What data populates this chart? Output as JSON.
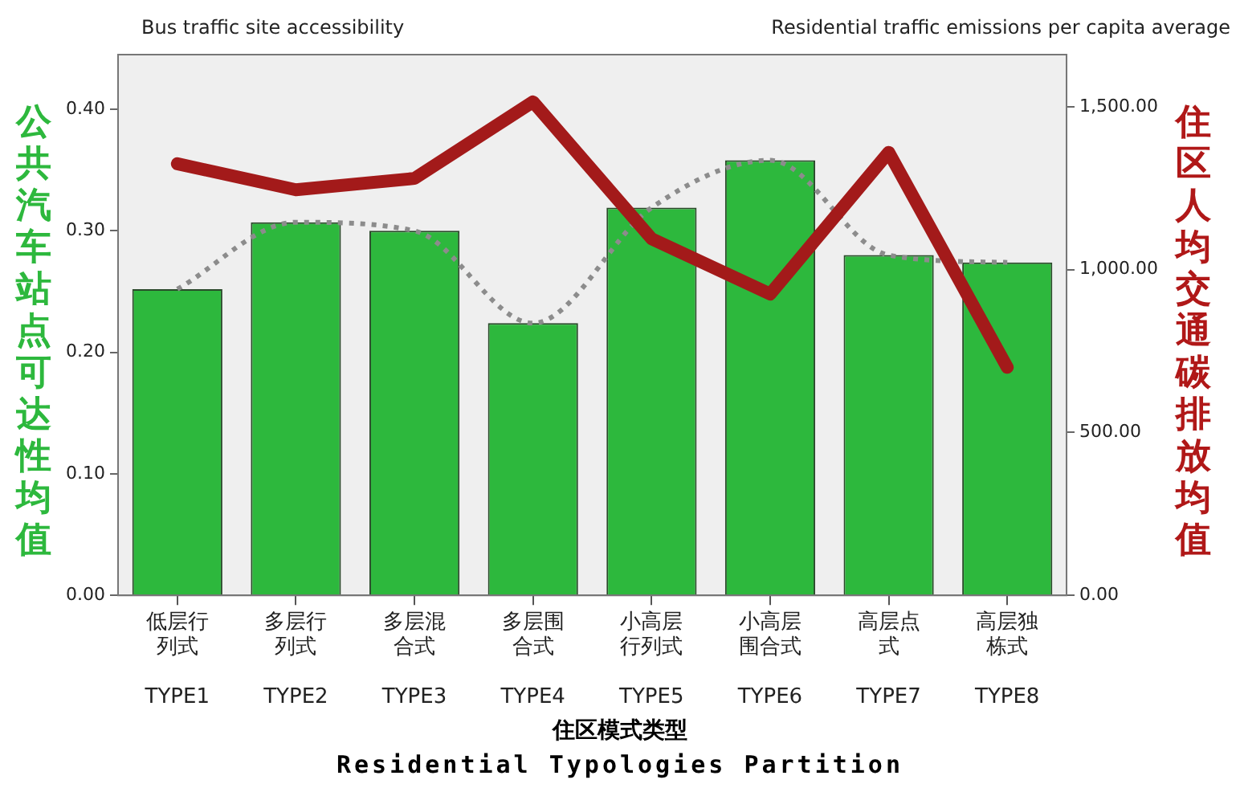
{
  "chart_data": {
    "type": "bar",
    "categories": [
      "低层行列式\nTYPE1",
      "多层行列式\nTYPE2",
      "多层混合式\nTYPE3",
      "多层围合式\nTYPE4",
      "小高层行列式\nTYPE5",
      "小高层围合式\nTYPE6",
      "高层点式\nTYPE7",
      "高层独栋式\nTYPE8"
    ],
    "series": [
      {
        "color": "#2db83d",
        "values": [
          0.252,
          0.307,
          0.3,
          0.224,
          0.319,
          0.358,
          0.28,
          0.274
        ]
      },
      {
        "type": "line",
        "color": "#8c8c8c",
        "line_style": "dotted",
        "values": [
          0.252,
          0.307,
          0.3,
          0.224,
          0.319,
          0.358,
          0.28,
          0.274
        ]
      },
      {
        "type": "line",
        "axis": "y2",
        "color": "#a31a1a",
        "line_style": "solid",
        "values": [
          1325,
          1245,
          1280,
          1515,
          1095,
          925,
          1360,
          700
        ]
      }
    ],
    "ylim": [
      0,
      0.445
    ],
    "yticks": [
      {
        "value": 0,
        "label": "0.00"
      },
      {
        "value": 0.1,
        "label": "0.10"
      },
      {
        "value": 0.2,
        "label": "0.20"
      },
      {
        "value": 0.3,
        "label": "0.30"
      },
      {
        "value": 0.4,
        "label": "0.40"
      }
    ],
    "y2lim": [
      0,
      1660
    ],
    "y2ticks": [
      {
        "value": 0,
        "label": "0.00"
      },
      {
        "value": 500,
        "label": "500.00"
      },
      {
        "value": 1000,
        "label": "1,000.00"
      },
      {
        "value": 1500,
        "label": "1,500.00"
      }
    ],
    "xlabel": "住区模式类型\nResidential Typologies Partition",
    "ylabel": "公共汽车站点可达性均值",
    "y2label": "住区人均交通碳排放均值",
    "annotations": [
      "Bus traffic site accessibility",
      "Residential traffic emissions per capita average"
    ],
    "grid": false,
    "legend": false
  }
}
